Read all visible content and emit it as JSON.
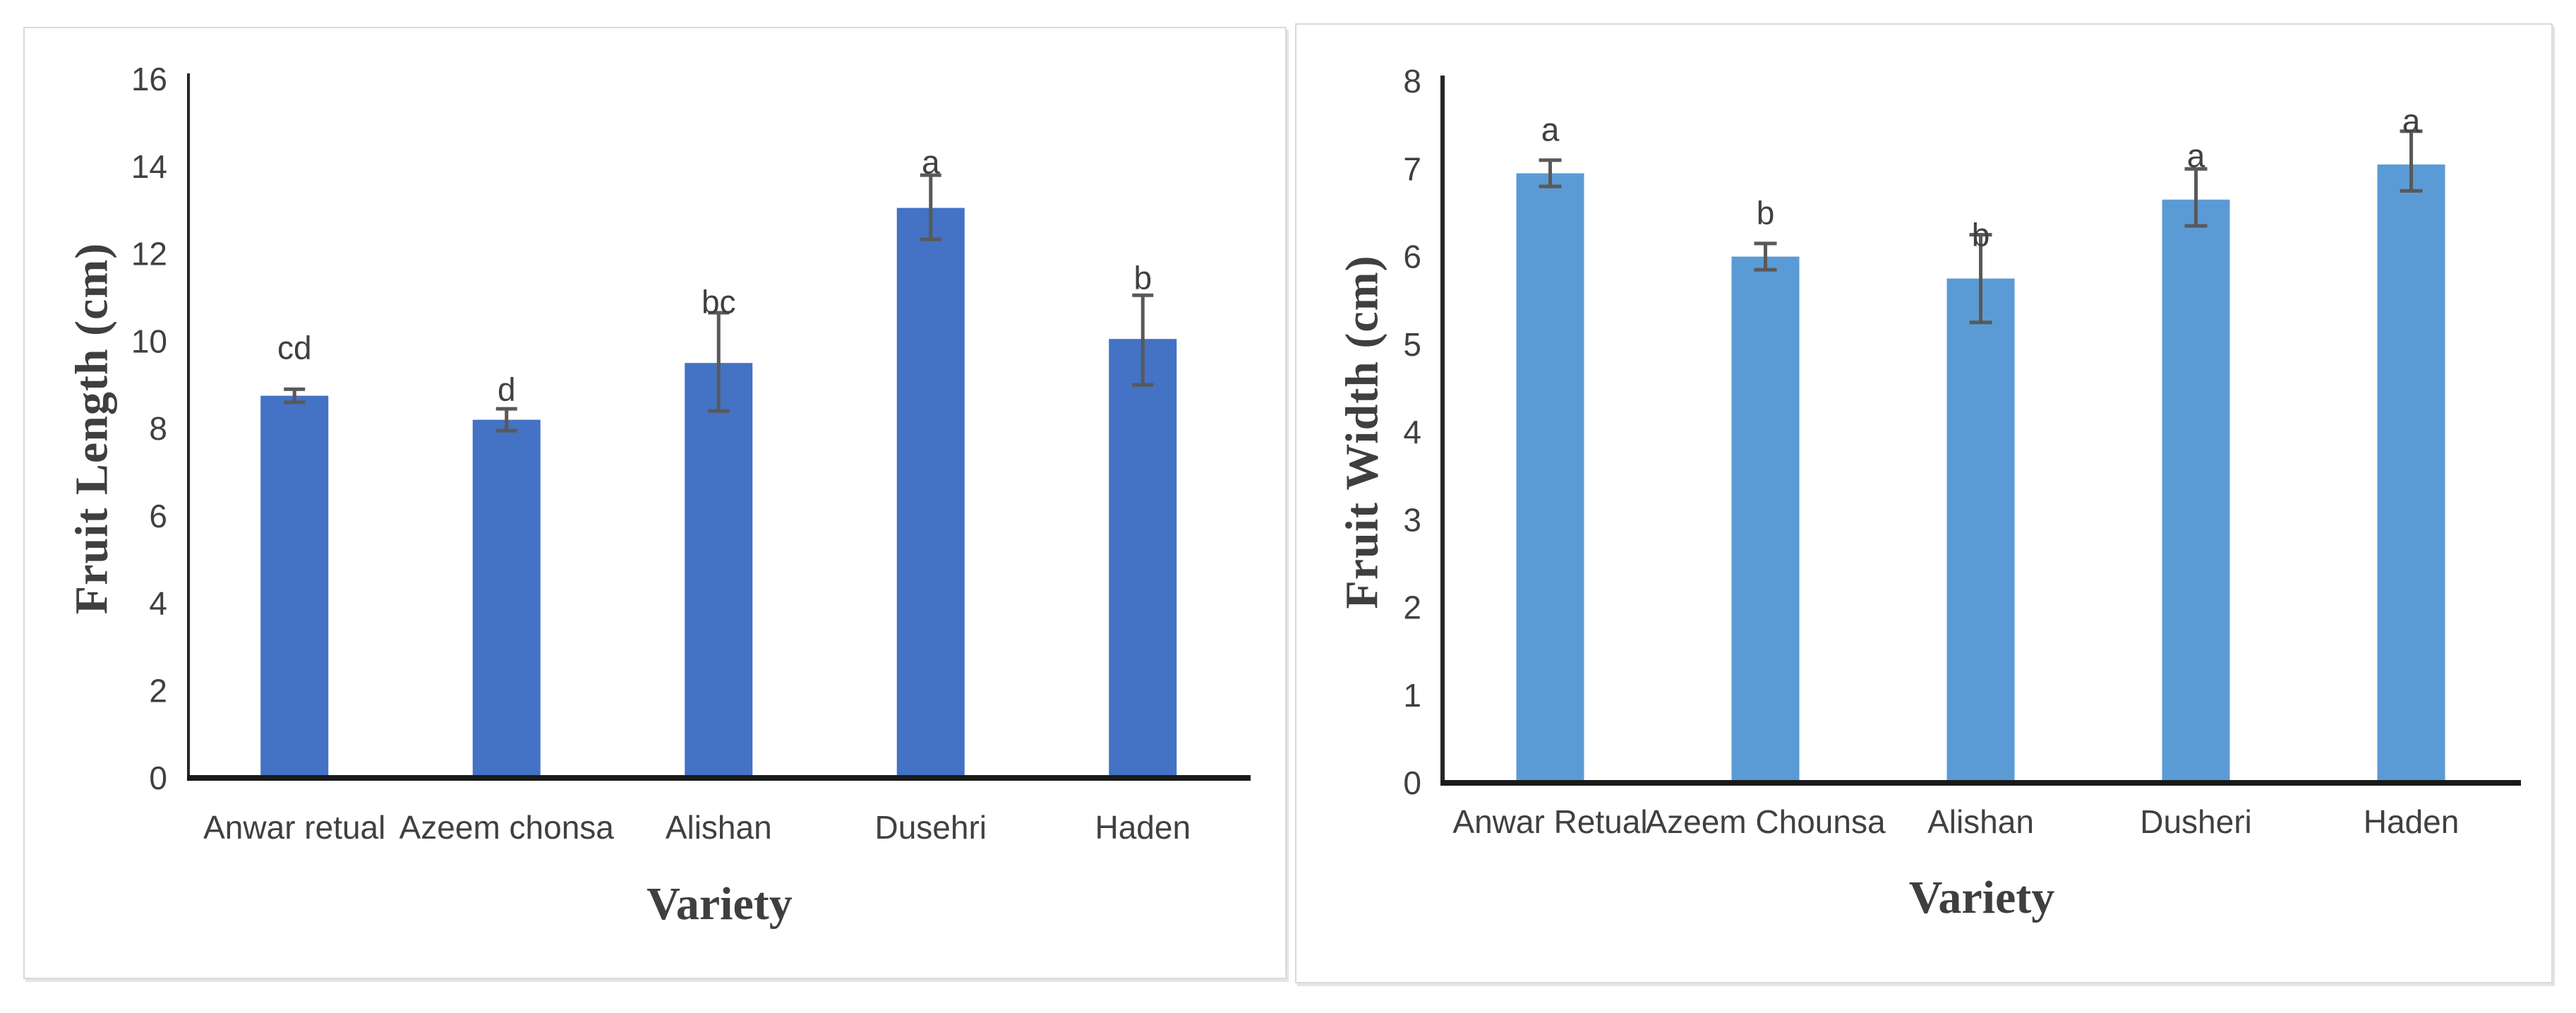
{
  "figure": {
    "background_color": "#ffffff",
    "panel_border_color": "#D9D9D9",
    "text_color": "#404040",
    "axis_line_color": "#1a1a1a"
  },
  "chart_data": [
    {
      "type": "bar",
      "title": "",
      "categories": [
        "Anwar retual",
        "Azeem chonsa",
        "Alishan",
        "Dusehri",
        "Haden"
      ],
      "values": [
        8.75,
        8.2,
        9.5,
        13.05,
        10.05
      ],
      "error_plus": [
        0.15,
        0.25,
        1.15,
        0.75,
        1.0
      ],
      "error_minus": [
        0.15,
        0.25,
        1.1,
        0.72,
        1.05
      ],
      "sig_letters": [
        "cd",
        "d",
        "bc",
        "a",
        "b"
      ],
      "sig_letter_y": [
        9.85,
        8.9,
        10.9,
        14.1,
        11.45
      ],
      "xlabel": "Variety",
      "ylabel": "Fruit Length (cm)",
      "ylim": [
        0,
        16
      ],
      "yticks": [
        0,
        2,
        4,
        6,
        8,
        10,
        12,
        14,
        16
      ],
      "grid": false,
      "legend": null,
      "bar_color": "#4472C4",
      "error_bar_color": "#595959"
    },
    {
      "type": "bar",
      "title": "",
      "categories": [
        "Anwar Retual",
        "Azeem Chounsa",
        "Alishan",
        "Dusheri",
        "Haden"
      ],
      "values": [
        6.95,
        6.0,
        5.75,
        6.65,
        7.05
      ],
      "error_plus": [
        0.15,
        0.15,
        0.5,
        0.35,
        0.38
      ],
      "error_minus": [
        0.15,
        0.15,
        0.5,
        0.3,
        0.3
      ],
      "sig_letters": [
        "a",
        "b",
        "b",
        "a",
        "a"
      ],
      "sig_letter_y": [
        7.45,
        6.5,
        6.25,
        7.15,
        7.55
      ],
      "xlabel": "Variety",
      "ylabel": "Fruit Width (cm)",
      "ylim": [
        0,
        8
      ],
      "yticks": [
        0,
        1,
        2,
        3,
        4,
        5,
        6,
        7,
        8
      ],
      "grid": false,
      "legend": null,
      "bar_color": "#5B9BD5",
      "error_bar_color": "#595959"
    }
  ]
}
